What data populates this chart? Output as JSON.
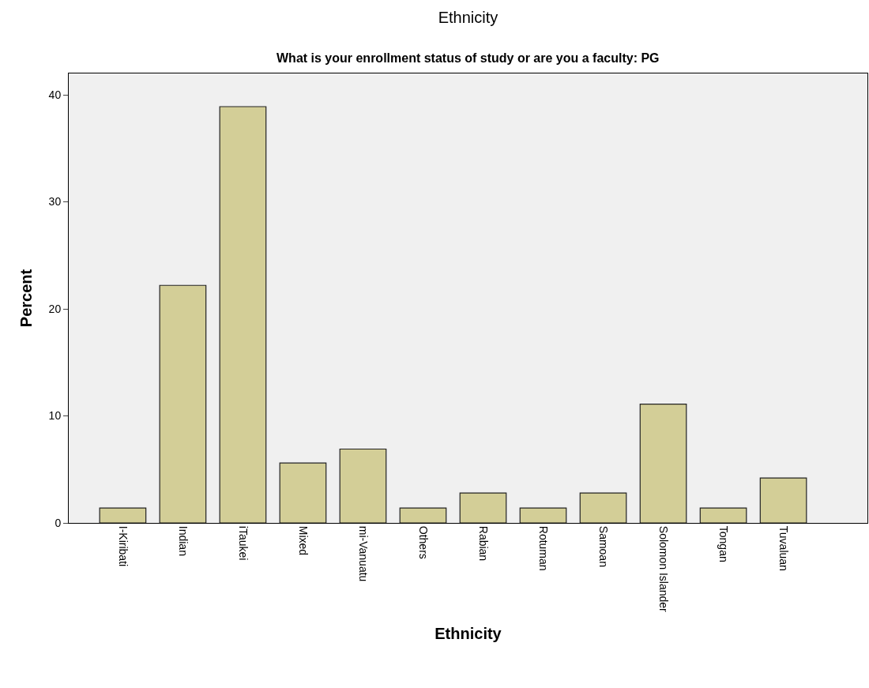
{
  "chart_data": {
    "type": "bar",
    "title": "Ethnicity",
    "subtitle": "What is your enrollment status of study or are you a faculty: PG",
    "xlabel": "Ethnicity",
    "ylabel": "Percent",
    "categories": [
      "I-Kiribati",
      "Indian",
      "iTaukei",
      "Mixed",
      "mi-Vanuatu",
      "Others",
      "Rabian",
      "Rotuman",
      "Samoan",
      "Solomon Islander",
      "Tongan",
      "Tuvaluan"
    ],
    "values": [
      1.4,
      22.2,
      38.9,
      5.6,
      6.9,
      1.4,
      2.8,
      1.4,
      2.8,
      11.1,
      1.4,
      4.2
    ],
    "color": "#d3ce97",
    "ylim": [
      0,
      42
    ],
    "yticks": [
      0,
      10,
      20,
      30,
      40
    ],
    "grid": false
  }
}
